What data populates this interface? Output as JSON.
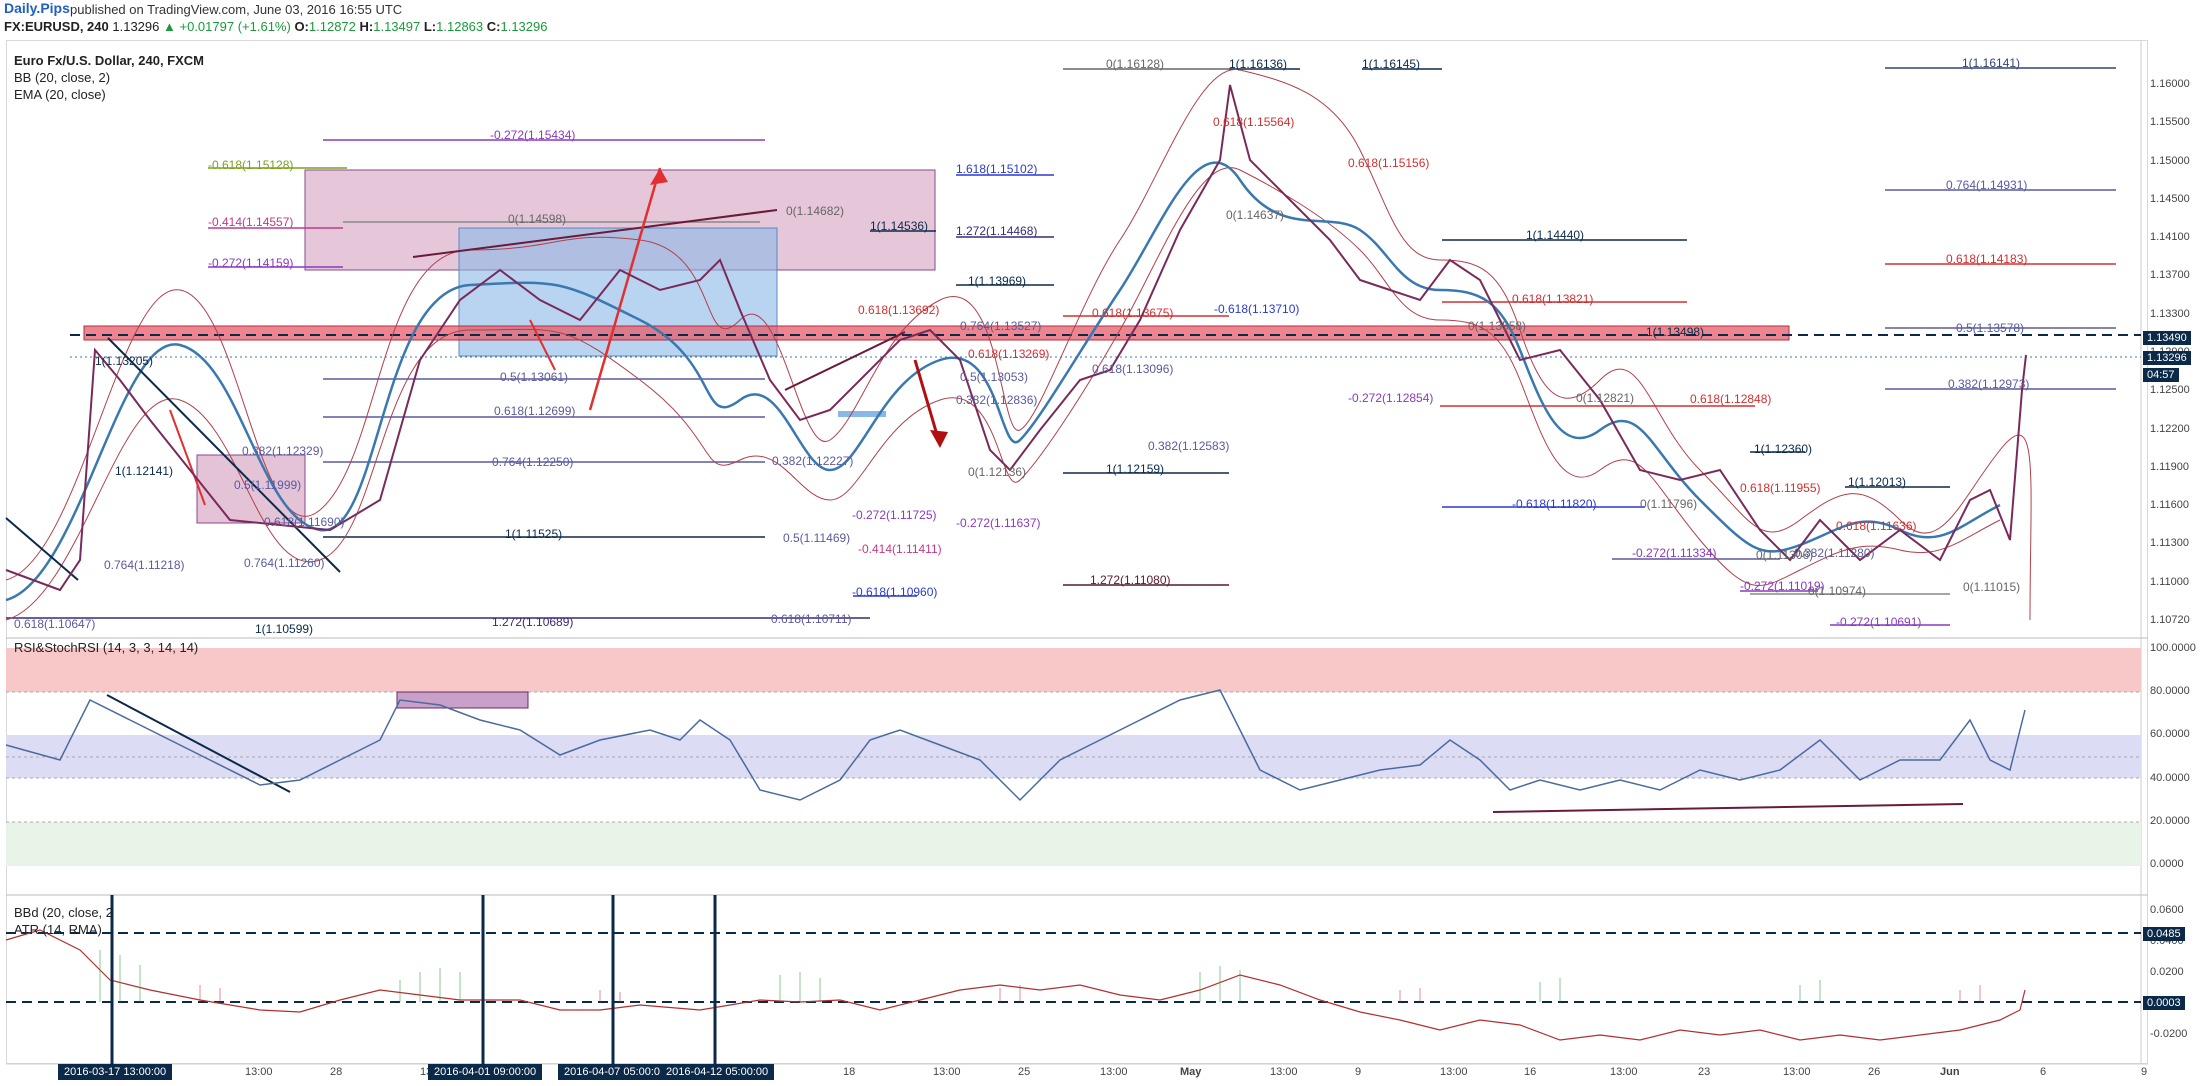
{
  "header": {
    "brand": "Daily.Pips",
    "published": "published on TradingView.com, June 03, 2016 16:55 UTC",
    "symbol": "FX:EURUSD, 240",
    "last": "1.13296",
    "change": "+0.01797 (+1.61%)",
    "open_label": "O:",
    "open": "1.12872",
    "high_label": "H:",
    "high": "1.13497",
    "low_label": "L:",
    "low": "1.12863",
    "close_label": "C:",
    "close": "1.13296"
  },
  "legend": {
    "title": "Euro Fx/U.S. Dollar, 240, FXCM",
    "bb": "BB (20, close, 2)",
    "ema": "EMA (20, close)",
    "rsi": "RSI&StochRSI (14, 3, 3, 14, 14)",
    "bbd": "BBd (20, close, 2",
    "atr": "ATR (14, RMA)"
  },
  "price_axis": [
    "1.16000",
    "1.15500",
    "1.15000",
    "1.14500",
    "1.14100",
    "1.13700",
    "1.13300",
    "1.12900",
    "1.12500",
    "1.12200",
    "1.11900",
    "1.11600",
    "1.11300",
    "1.11000",
    "1.10720"
  ],
  "rsi_axis": [
    "100.0000",
    "80.0000",
    "60.0000",
    "40.0000",
    "20.0000",
    "0.0000"
  ],
  "bbd_axis": [
    "0.0600",
    "0.0400",
    "0.0200",
    "0.0000",
    "-0.0200"
  ],
  "price_tags": {
    "level": "1.13490",
    "current": "1.13296",
    "countdown": "04:57"
  },
  "bbd_tags": {
    "upper": "0.0485",
    "lower": "0.0003"
  },
  "time_axis": [
    "13:00",
    "28",
    "13:00",
    "18",
    "13:00",
    "25",
    "13:00",
    "May",
    "13:00",
    "9",
    "13:00",
    "16",
    "13:00",
    "23",
    "13:00",
    "26",
    "Jun",
    "6",
    "9"
  ],
  "date_tags": [
    "2016-03-17 13:00:00",
    "2016-04-01 09:00:00",
    "2016-04-07 05:00:00",
    "2016-04-12 05:00:00"
  ],
  "fib_labels": [
    {
      "text": "0(1.16128)",
      "c": "#666"
    },
    {
      "text": "1(1.16136)",
      "c": "#0b2a4a"
    },
    {
      "text": "1(1.16145)",
      "c": "#0b2a4a"
    },
    {
      "text": "1(1.16141)",
      "c": "#334477"
    },
    {
      "text": "-0.272(1.15434)",
      "c": "#8a3ac0"
    },
    {
      "text": "0.618(1.15564)",
      "c": "#d03030"
    },
    {
      "text": "-0.618(1.15128)",
      "c": "#7aa020"
    },
    {
      "text": "1.618(1.15102)",
      "c": "#2a3ad0"
    },
    {
      "text": "0.618(1.15156)",
      "c": "#d03030"
    },
    {
      "text": "0.764(1.14931)",
      "c": "#5a5aa0"
    },
    {
      "text": "-0.414(1.14557)",
      "c": "#c03a8a"
    },
    {
      "text": "0(1.14598)",
      "c": "#666"
    },
    {
      "text": "0(1.14682)",
      "c": "#666"
    },
    {
      "text": "1(1.14536)",
      "c": "#0b2a4a"
    },
    {
      "text": "1.272(1.14468)",
      "c": "#3a2a7a"
    },
    {
      "text": "0(1.14637)",
      "c": "#666"
    },
    {
      "text": "1(1.14440)",
      "c": "#0b2a4a"
    },
    {
      "text": "-0.272(1.14159)",
      "c": "#8a3ac0"
    },
    {
      "text": "0.618(1.14183)",
      "c": "#d03030"
    },
    {
      "text": "1(1.13969)",
      "c": "#0b2a4a"
    },
    {
      "text": "0.618(1.13821)",
      "c": "#d03030"
    },
    {
      "text": "0.618(1.13692)",
      "c": "#d03030"
    },
    {
      "text": "0.618(1.13675)",
      "c": "#d03030"
    },
    {
      "text": "-0.618(1.13710)",
      "c": "#2a3ad0"
    },
    {
      "text": "0.764(1.13527)",
      "c": "#5a5aa0"
    },
    {
      "text": "0(1.13558)",
      "c": "#666"
    },
    {
      "text": "1(1.13498)",
      "c": "#0b2a4a"
    },
    {
      "text": "0.5(1.13578)",
      "c": "#5a5aa0"
    },
    {
      "text": "1(1.13205)",
      "c": "#0b2a4a"
    },
    {
      "text": "0.618(1.13269)",
      "c": "#d03030"
    },
    {
      "text": "0.5(1.13061)",
      "c": "#5a5aa0"
    },
    {
      "text": "0.5(1.13053)",
      "c": "#5a5aa0"
    },
    {
      "text": "0.618(1.13096)",
      "c": "#5a5aa0"
    },
    {
      "text": "0.382(1.12973)",
      "c": "#5a5aa0"
    },
    {
      "text": "-0.272(1.12854)",
      "c": "#8a3ac0"
    },
    {
      "text": "0.618(1.12848)",
      "c": "#d03030"
    },
    {
      "text": "0.382(1.12836)",
      "c": "#5a5aa0"
    },
    {
      "text": "0(1.12821)",
      "c": "#666"
    },
    {
      "text": "0.618(1.12699)",
      "c": "#5a5aa0"
    },
    {
      "text": "0.382(1.12329)",
      "c": "#5a5aa0"
    },
    {
      "text": "0.764(1.12250)",
      "c": "#5a5aa0"
    },
    {
      "text": "0.382(1.12227)",
      "c": "#5a5aa0"
    },
    {
      "text": "0.382(1.12583)",
      "c": "#5a5aa0"
    },
    {
      "text": "1(1.12360)",
      "c": "#0b2a4a"
    },
    {
      "text": "1(1.12141)",
      "c": "#0b2a4a"
    },
    {
      "text": "1(1.12159)",
      "c": "#0b2a4a"
    },
    {
      "text": "0(1.12136)",
      "c": "#666"
    },
    {
      "text": "1(1.12013)",
      "c": "#0b2a4a"
    },
    {
      "text": "0.5(1.11999)",
      "c": "#5a5aa0"
    },
    {
      "text": "0.618(1.11955)",
      "c": "#d03030"
    },
    {
      "text": "-0.618(1.11820)",
      "c": "#2a3ad0"
    },
    {
      "text": "0(1.11796)",
      "c": "#666"
    },
    {
      "text": "-0.272(1.11725)",
      "c": "#8a3ac0"
    },
    {
      "text": "0.618(1.11690)",
      "c": "#5a5aa0"
    },
    {
      "text": "-0.272(1.11637)",
      "c": "#8a3ac0"
    },
    {
      "text": "0.618(1.11636)",
      "c": "#d03030"
    },
    {
      "text": "1(1.11525)",
      "c": "#0b2a4a"
    },
    {
      "text": "0.5(1.11469)",
      "c": "#5a5aa0"
    },
    {
      "text": "-0.414(1.11411)",
      "c": "#c03a8a"
    },
    {
      "text": "-0.272(1.11334)",
      "c": "#8a3ac0"
    },
    {
      "text": "0(1.11306)",
      "c": "#666"
    },
    {
      "text": "0.382(1.11280)",
      "c": "#5a5aa0"
    },
    {
      "text": "0.764(1.11218)",
      "c": "#5a5aa0"
    },
    {
      "text": "0.764(1.11260)",
      "c": "#5a5aa0"
    },
    {
      "text": "1.272(1.11080)",
      "c": "#5a1a2a"
    },
    {
      "text": "-0.272(1.11019)",
      "c": "#8a3ac0"
    },
    {
      "text": "0(1.11015)",
      "c": "#666"
    },
    {
      "text": "0(1.10974)",
      "c": "#666"
    },
    {
      "text": "-0.618(1.10960)",
      "c": "#2a3ad0"
    },
    {
      "text": "1.272(1.10689)",
      "c": "#3a2a7a"
    },
    {
      "text": "0.618(1.10711)",
      "c": "#5a5aa0"
    },
    {
      "text": "-0.272(1.10691)",
      "c": "#8a3ac0"
    },
    {
      "text": "0.618(1.10647)",
      "c": "#5a5aa0"
    },
    {
      "text": "1(1.10599)",
      "c": "#0b2a4a"
    }
  ],
  "colors": {
    "up": "#1a9a3a",
    "bb": "#b0404a",
    "ema": "#3a78b0",
    "band_upper": "#f8c8c8",
    "band_mid": "#dcdcf4",
    "band_lower": "#e8f4e8"
  }
}
